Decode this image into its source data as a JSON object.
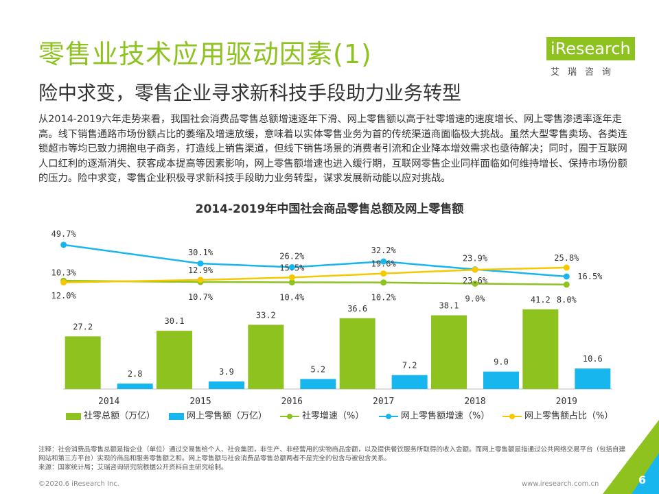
{
  "header": {
    "title": "零售业技术应用驱动因素(1)",
    "subtitle": "险中求变，零售企业寻求新科技手段助力业务转型",
    "logo_text": "iResearch",
    "logo_cn": "艾瑞咨询"
  },
  "body_text": "从2014-2019六年走势来看，我国社会消费品零售总额增速逐年下滑、网上零售额以高于社零增速的速度增长、网上零售渗透率逐年走高。线下销售通路市场份额占比的萎缩及增速放缓，意味着以实体零售业务为首的传统渠道商面临极大挑战。虽然大型零售卖场、各类连锁超市等均已致力拥抱电子商务，打造线上销售渠道，但线下销售场景的消费者引流和企业降本增效需求也亟待解决；同时，囿于互联网人口红利的逐渐消失、获客成本提高等因素影响，网上零售额增速也进入缓行期，互联网零售企业同样面临如何维持增长、保持市场份额的压力。险中求变，零售企业积极寻求新科技手段助力业务转型，谋求发展新动能以应对挑战。",
  "chart_data": {
    "type": "bar",
    "title": "2014-2019年中国社会商品零售总额及网上零售额",
    "categories": [
      "2014",
      "2015",
      "2016",
      "2017",
      "2018",
      "2019"
    ],
    "bar_series": [
      {
        "name": "社零总额（万亿）",
        "values": [
          27.2,
          30.1,
          33.2,
          36.6,
          38.1,
          41.2
        ],
        "labels": [
          "27.2",
          "30.1",
          "33.2",
          "36.6",
          "38.1",
          "41.2"
        ],
        "color": "#8dc21f"
      },
      {
        "name": "网上零售额（万亿）",
        "values": [
          2.8,
          3.9,
          5.2,
          7.2,
          9.0,
          10.6
        ],
        "labels": [
          "2.8",
          "3.9",
          "5.2",
          "7.2",
          "9.0",
          "10.6"
        ],
        "color": "#17b6ee"
      }
    ],
    "line_series": [
      {
        "name": "社零增速（%）",
        "values": [
          12.0,
          10.7,
          10.4,
          10.2,
          9.0,
          8.0
        ],
        "labels": [
          "12.0%",
          "10.7%",
          "10.4%",
          "10.2%",
          "9.0%",
          "8.0%"
        ],
        "color": "#8dc21f"
      },
      {
        "name": "网上零售额增速（%）",
        "values": [
          49.7,
          30.1,
          26.2,
          32.2,
          23.9,
          16.5
        ],
        "labels": [
          "49.7%",
          "30.1%",
          "26.2%",
          "32.2%",
          "23.9%",
          "16.5%"
        ],
        "color": "#17b6ee"
      },
      {
        "name": "网上零售额占比（%）",
        "values": [
          10.3,
          12.9,
          15.5,
          19.6,
          23.6,
          25.8
        ],
        "labels": [
          "10.3%",
          "12.9%",
          "15.5%",
          "19.6%",
          "23.6%",
          "25.8%"
        ],
        "color": "#f5c800"
      }
    ],
    "legend_position": "bottom"
  },
  "note": "注释：社会消费品零售总额是指企业（单位）通过交易售给个人、社会集团，非生产、非经营用的实物商品金额，以及提供餐饮服务所取得的收入金额。而网上零售额是指通过公共网络交易平台（包括自建网站和第三方平台）实现的商品和服务零售额之和。网上零售额与社会消费品零售总额两者不是完全的包含与被包含关系。",
  "source": "来源：国家统计局；艾瑞咨询研究院根据公开资料自主研究绘制。",
  "footer": {
    "copyright": "©2020.6 iResearch Inc.",
    "url": "www.iresearch.com.cn",
    "page": "6"
  }
}
